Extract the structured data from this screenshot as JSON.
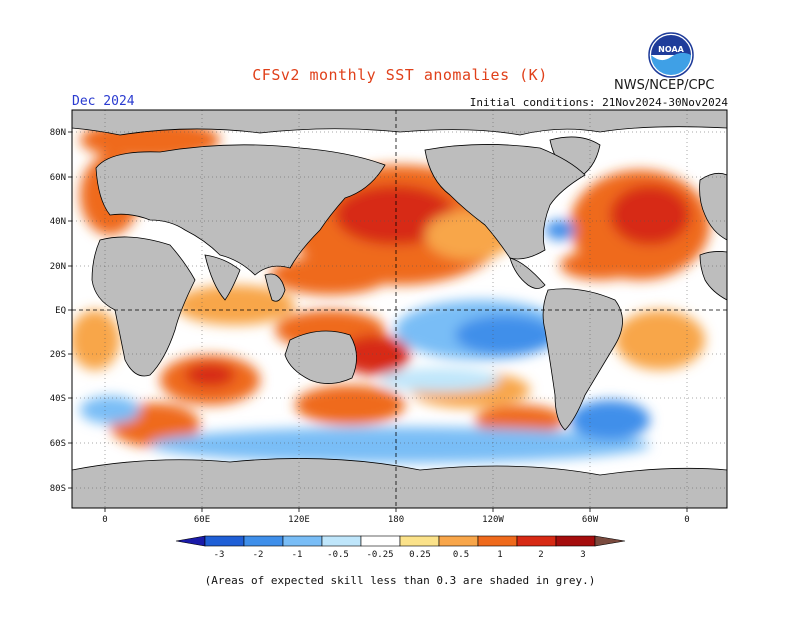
{
  "header": {
    "title": "CFSv2 monthly SST anomalies (K)",
    "agency": "NWS/NCEP/CPC",
    "month": "Dec 2024",
    "initial_conditions": "Initial conditions: 21Nov2024-30Nov2024",
    "logo_text": "NOAA"
  },
  "map": {
    "lat_labels": [
      "80N",
      "60N",
      "40N",
      "20N",
      "EQ",
      "20S",
      "40S",
      "60S",
      "80S"
    ],
    "lon_labels": [
      "0",
      "60E",
      "120E",
      "180",
      "120W",
      "60W",
      "0"
    ],
    "land_color": "#bdbdbd",
    "mask_color": "#c8c8c8"
  },
  "colorbar": {
    "labels": [
      "-3",
      "-2",
      "-1",
      "-0.5",
      "-0.25",
      "0.25",
      "0.5",
      "1",
      "2",
      "3"
    ],
    "colors": [
      "#1a1aa8",
      "#1f5fd6",
      "#3f8fea",
      "#79bdf6",
      "#bfe6fb",
      "#ffffff",
      "#fbe28a",
      "#f8a64a",
      "#ef6a1c",
      "#d72a14",
      "#a50d0d",
      "#7a4a3e"
    ]
  },
  "footnote": "(Areas of expected skill less than 0.3 are shaded in grey.)"
}
